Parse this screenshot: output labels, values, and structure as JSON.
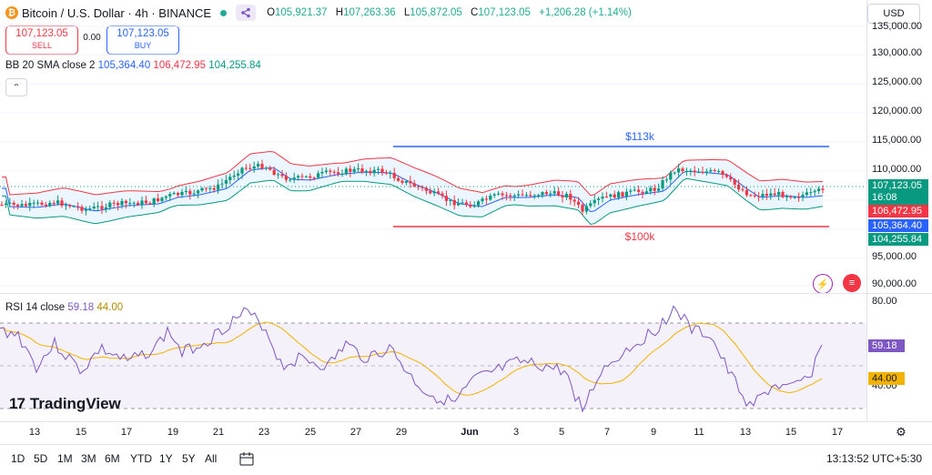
{
  "header": {
    "symbol_title": "Bitcoin / U.S. Dollar · 4h · BINANCE",
    "ohlc": {
      "o_label": "O",
      "o_value": "105,921.37",
      "h_label": "H",
      "h_value": "107,263.36",
      "l_label": "L",
      "l_value": "105,872.05",
      "c_label": "C",
      "c_value": "107,123.05",
      "change": "+1,206.28 (+1.14%)"
    },
    "currency": "USD"
  },
  "trade": {
    "sell_price": "107,123.05",
    "sell_label": "SELL",
    "spread": "0.00",
    "buy_price": "107,123.05",
    "buy_label": "BUY"
  },
  "bb_legend": {
    "name": "BB 20 SMA close 2",
    "basis": "105,364.40",
    "upper": "106,472.95",
    "lower": "104,255.84"
  },
  "price_axis": {
    "ticks": [
      "135,000.00",
      "130,000.00",
      "125,000.00",
      "120,000.00",
      "115,000.00",
      "110,000.00",
      "95,000.00",
      "90,000.00"
    ],
    "last_price": "107,123.05",
    "countdown": "16:08",
    "upper_label": "106,472.95",
    "basis_label": "105,364.40",
    "lower_label": "104,255.84"
  },
  "annotations": {
    "resistance": "$113k",
    "support": "$100k"
  },
  "rsi": {
    "name": "RSI 14 close",
    "value": "59.18",
    "ma": "44.00",
    "axis_top": "80.00",
    "axis_bottom": "40.00"
  },
  "branding": "TradingView",
  "time_axis": [
    "13",
    "15",
    "17",
    "19",
    "21",
    "23",
    "25",
    "27",
    "29",
    "Jun",
    "3",
    "5",
    "7",
    "9",
    "11",
    "13",
    "15",
    "17"
  ],
  "toolbar": {
    "ranges": [
      "1D",
      "5D",
      "1M",
      "3M",
      "6M",
      "YTD",
      "1Y",
      "5Y",
      "All"
    ],
    "clock": "13:13:52 UTC+5:30"
  },
  "colors": {
    "bull": "#089981",
    "bear": "#f23645",
    "basis": "#2962ff",
    "rsi": "#7e57c2",
    "rsi_ma": "#f2b200",
    "band_fill": "#e3f2fd"
  },
  "chart_data": {
    "type": "candlestick",
    "timeframe": "4h",
    "price_range": [
      88000,
      136000
    ],
    "bollinger": {
      "basis": 105364.4,
      "upper": 106472.95,
      "lower": 104255.84
    },
    "levels": [
      {
        "label": "$113k",
        "value": 113000
      },
      {
        "label": "$100k",
        "value": 100000
      }
    ],
    "rsi_range": [
      20,
      85
    ],
    "rsi_levels": [
      70,
      50,
      30
    ]
  }
}
